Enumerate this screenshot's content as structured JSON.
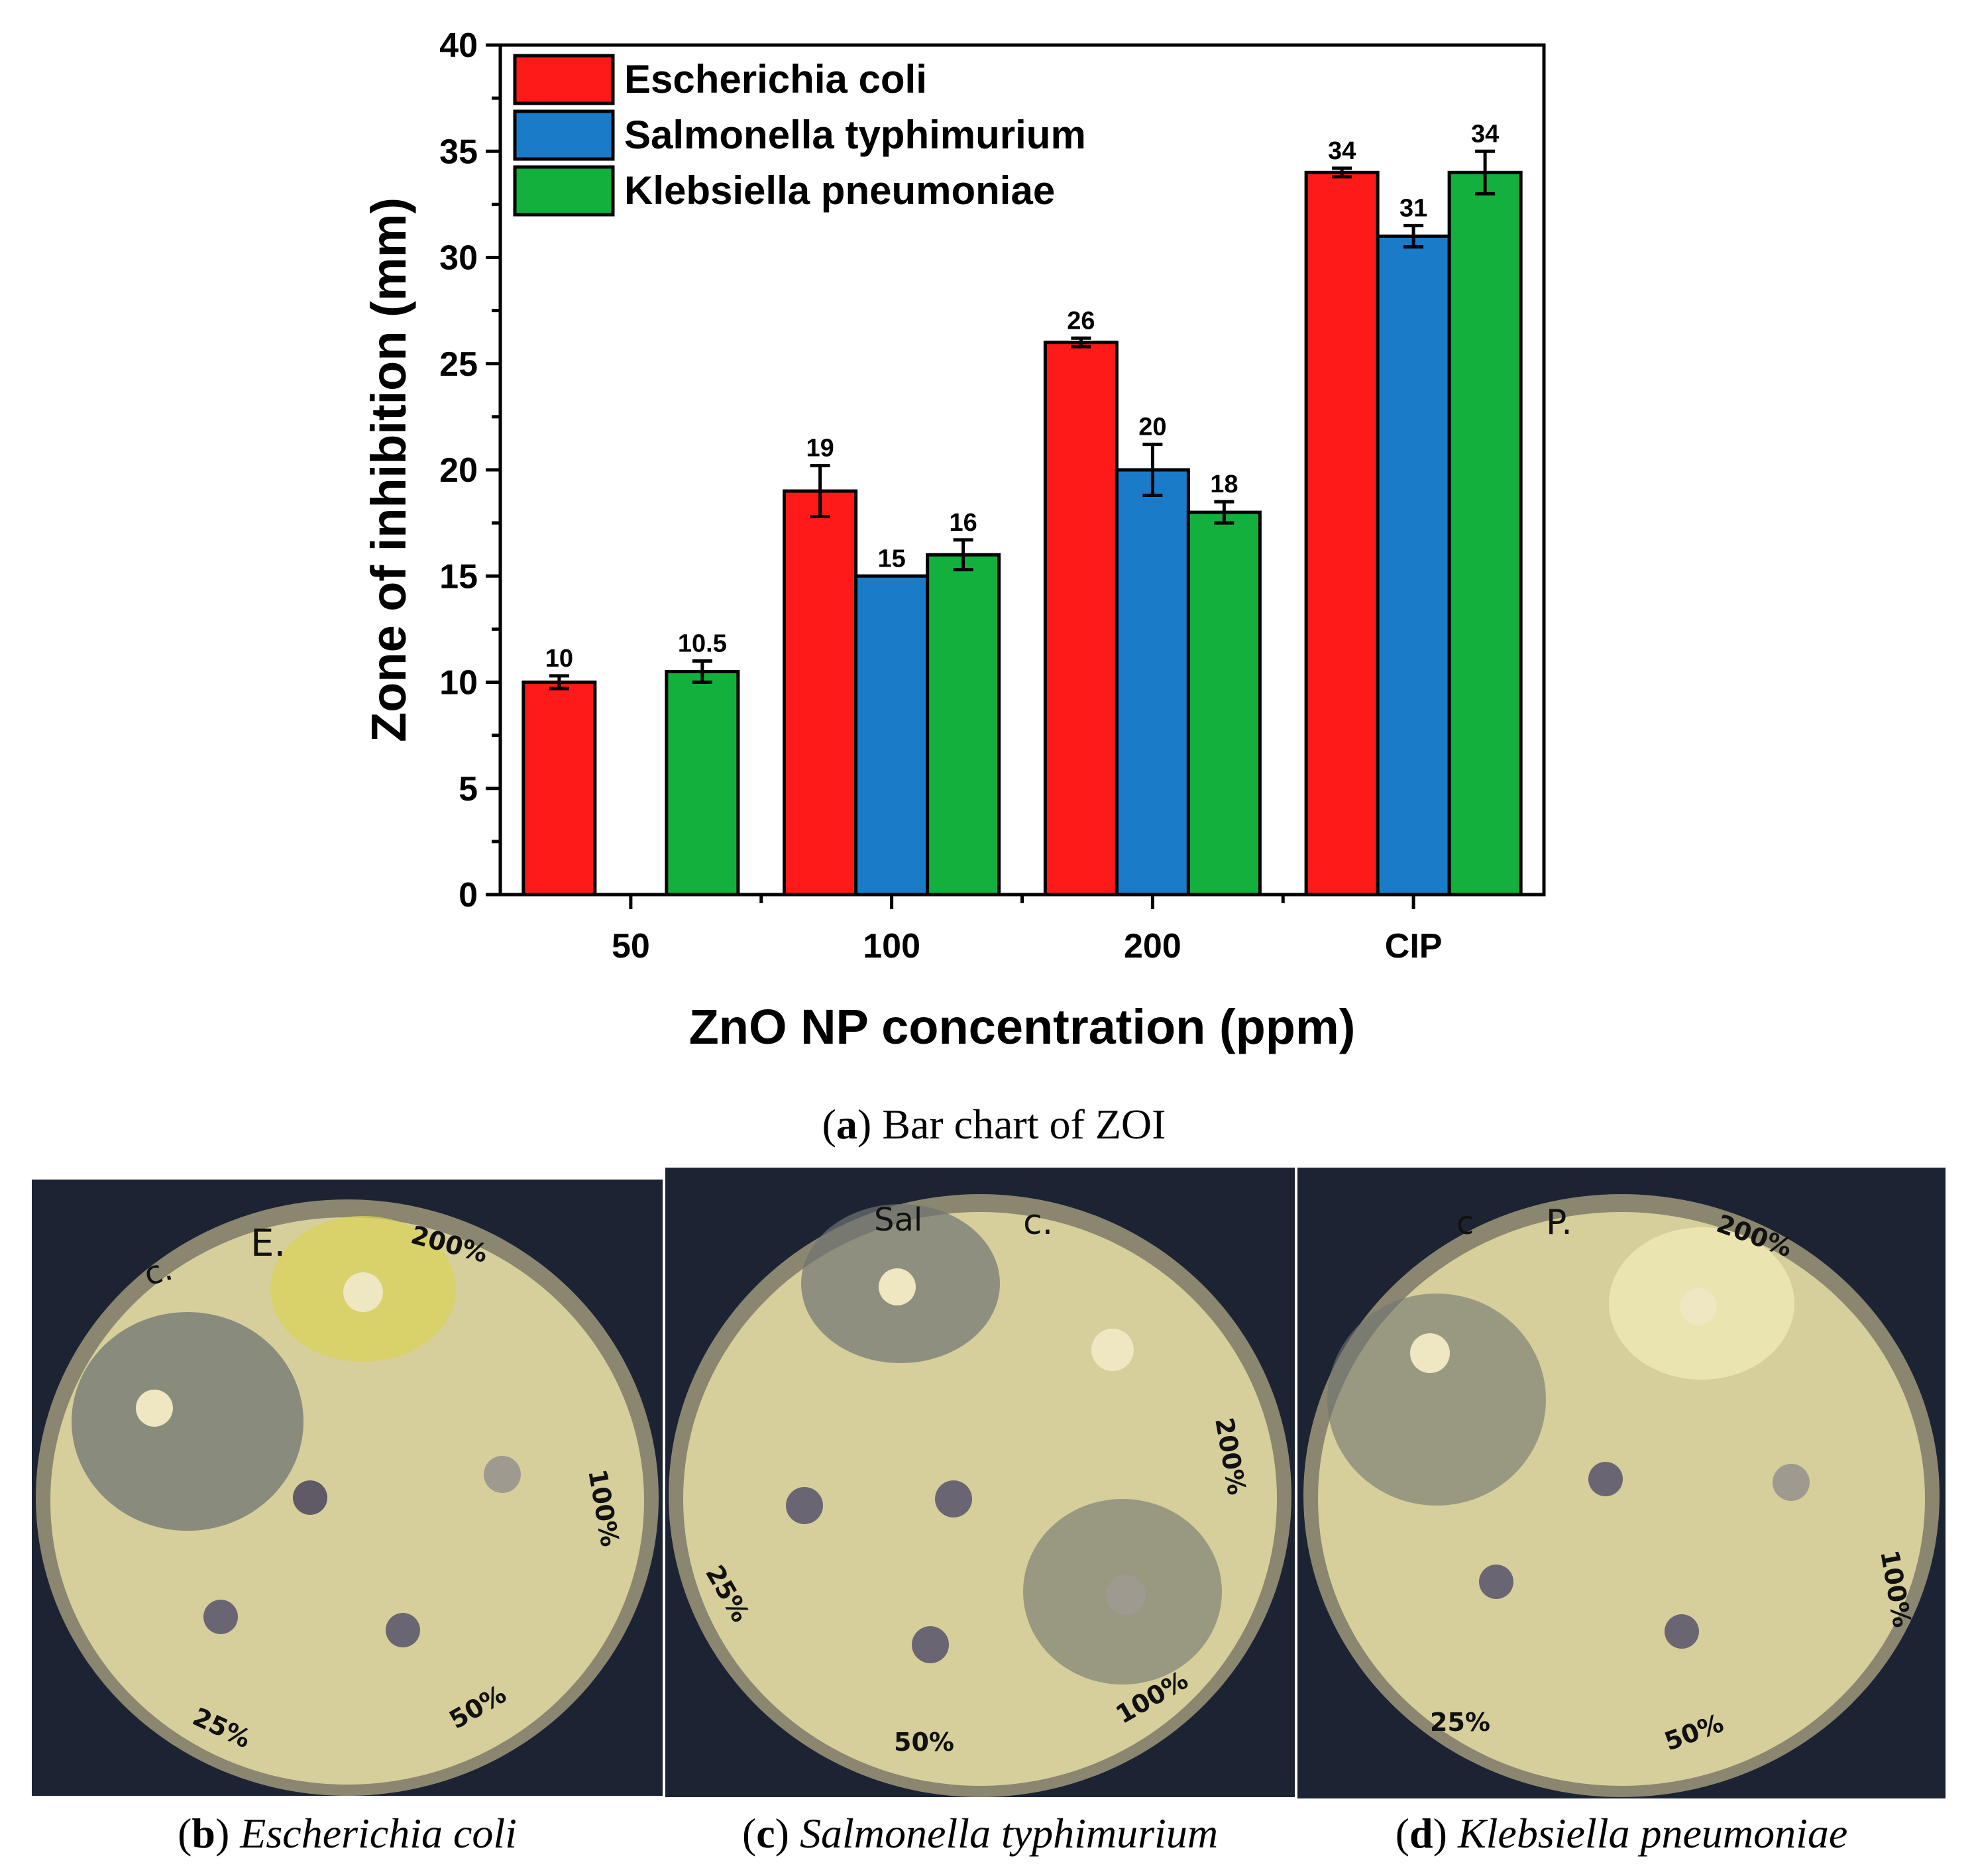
{
  "chart_data": {
    "type": "bar",
    "xlabel": "ZnO NP concentration (ppm)",
    "ylabel": "Zone of inhibition (mm)",
    "ylim": [
      0,
      40
    ],
    "yticks": [
      "0",
      "5",
      "10",
      "15",
      "20",
      "25",
      "30",
      "35",
      "40"
    ],
    "categories": [
      "50",
      "100",
      "200",
      "CIP"
    ],
    "series": [
      {
        "name": "Escherichia coli",
        "color": "#ff1a1a",
        "values": [
          10,
          19,
          26,
          34
        ],
        "errors": [
          0.3,
          1.2,
          0.2,
          0.2
        ],
        "labels": [
          "10",
          "19",
          "26",
          "34"
        ]
      },
      {
        "name": "Salmonella typhimurium",
        "color": "#1a7cc9",
        "values": [
          null,
          15,
          20,
          31
        ],
        "errors": [
          null,
          0,
          1.2,
          0.5
        ],
        "labels": [
          "",
          "15",
          "20",
          "31"
        ]
      },
      {
        "name": "Klebsiella pneumoniae",
        "color": "#14b03d",
        "values": [
          10.5,
          16,
          18,
          34
        ],
        "errors": [
          0.5,
          0.7,
          0.5,
          1.0
        ],
        "labels": [
          "10.5",
          "16",
          "18",
          "34"
        ]
      }
    ],
    "legend_position": "top-left",
    "grid": false
  },
  "captions": {
    "a": {
      "letter": "a",
      "text": "Bar chart of ZOI"
    },
    "b": {
      "letter": "b",
      "text": "Escherichia coli"
    },
    "c": {
      "letter": "c",
      "text": "Salmonella typhimurium"
    },
    "d": {
      "letter": "d",
      "text": "Klebsiella pneumoniae"
    }
  },
  "plate_labels": {
    "b": [
      "c.",
      "E.",
      "200%",
      "100%",
      "50%",
      "25%"
    ],
    "c": [
      "Sal",
      "c.",
      "200%",
      "100%",
      "50%",
      "25%"
    ],
    "d": [
      "c",
      "P.",
      "200%",
      "100%",
      "50%",
      "25%"
    ]
  }
}
